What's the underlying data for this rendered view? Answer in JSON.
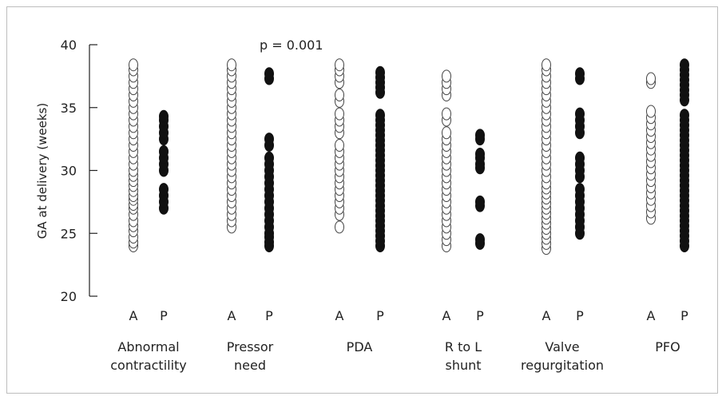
{
  "chart_data": {
    "type": "scatter",
    "ylabel": "GA at delivery (weeks)",
    "ylim": [
      20,
      40
    ],
    "yticks": [
      20,
      25,
      30,
      35,
      40
    ],
    "annotation": "p = 0.001",
    "group_labels": [
      "A",
      "P"
    ],
    "marker_styles": {
      "A": "open",
      "P": "filled"
    },
    "categories": [
      {
        "label_lines": [
          "Abnormal",
          "contractility"
        ],
        "A": [
          24.0,
          24.3,
          24.7,
          25.2,
          25.6,
          26.0,
          26.5,
          27.0,
          27.3,
          27.7,
          28.0,
          28.4,
          28.8,
          29.2,
          29.6,
          30.0,
          30.5,
          31.0,
          31.5,
          32.0,
          32.5,
          33.0,
          33.5,
          34.0,
          34.5,
          35.0,
          35.5,
          36.0,
          36.5,
          37.0,
          37.5,
          38.0,
          38.4
        ],
        "P": [
          27.0,
          27.5,
          28.0,
          28.5,
          30.0,
          30.5,
          31.0,
          31.5,
          32.5,
          33.0,
          33.5,
          34.0,
          34.3
        ]
      },
      {
        "label_lines": [
          "Pressor",
          "need"
        ],
        "A": [
          25.5,
          26.0,
          26.5,
          27.0,
          27.5,
          28.0,
          28.5,
          29.0,
          29.5,
          30.0,
          30.5,
          31.0,
          31.5,
          32.0,
          32.5,
          33.0,
          33.5,
          34.0,
          34.5,
          35.0,
          35.5,
          36.0,
          36.5,
          37.0,
          37.5,
          38.0,
          38.4
        ],
        "P": [
          24.0,
          24.3,
          24.7,
          25.0,
          25.5,
          26.0,
          26.5,
          27.0,
          27.5,
          28.0,
          28.5,
          29.0,
          29.5,
          30.0,
          30.5,
          31.0,
          32.0,
          32.5,
          37.3,
          37.7
        ]
      },
      {
        "label_lines": [
          "PDA"
        ],
        "A": [
          25.5,
          26.5,
          27.0,
          27.5,
          28.0,
          28.5,
          29.0,
          29.5,
          30.0,
          30.5,
          31.0,
          31.5,
          32.0,
          33.0,
          33.5,
          34.0,
          34.5,
          35.5,
          36.0,
          37.0,
          37.5,
          38.0,
          38.4
        ],
        "P": [
          24.0,
          24.4,
          24.8,
          25.2,
          25.6,
          26.0,
          26.4,
          26.8,
          27.2,
          27.6,
          28.0,
          28.4,
          28.8,
          29.2,
          29.6,
          30.0,
          30.4,
          30.8,
          31.2,
          31.6,
          32.0,
          32.4,
          32.8,
          33.2,
          33.6,
          34.0,
          34.4,
          36.2,
          36.6,
          37.0,
          37.4,
          37.8
        ]
      },
      {
        "label_lines": [
          "R to L",
          "shunt"
        ],
        "A": [
          24.0,
          24.5,
          25.0,
          25.5,
          26.0,
          26.5,
          27.0,
          27.5,
          28.0,
          28.5,
          29.0,
          29.5,
          30.0,
          30.5,
          31.0,
          31.5,
          32.0,
          32.5,
          33.0,
          34.0,
          34.5,
          36.0,
          36.5,
          37.0,
          37.5
        ],
        "P": [
          24.2,
          24.5,
          27.2,
          27.5,
          30.2,
          30.5,
          31.0,
          31.3,
          32.5,
          32.8
        ]
      },
      {
        "label_lines": [
          "Valve",
          "regurgitation"
        ],
        "A": [
          23.8,
          24.2,
          24.6,
          25.0,
          25.4,
          25.8,
          26.2,
          26.6,
          27.0,
          27.4,
          27.8,
          28.2,
          28.6,
          29.0,
          29.5,
          30.0,
          30.5,
          31.0,
          31.5,
          32.0,
          32.5,
          33.0,
          33.5,
          34.0,
          34.5,
          35.0,
          35.5,
          36.0,
          36.5,
          37.0,
          37.5,
          38.0,
          38.4
        ],
        "P": [
          25.0,
          25.5,
          26.0,
          26.5,
          27.0,
          27.5,
          28.0,
          28.5,
          29.5,
          30.0,
          30.5,
          31.0,
          33.0,
          33.5,
          34.0,
          34.5,
          37.3,
          37.7
        ]
      },
      {
        "label_lines": [
          "PFO"
        ],
        "A": [
          26.2,
          26.7,
          27.2,
          27.7,
          28.2,
          28.7,
          29.2,
          29.7,
          30.2,
          30.7,
          31.2,
          31.7,
          32.2,
          32.7,
          33.2,
          33.7,
          34.2,
          34.7,
          37.0,
          37.3
        ],
        "P": [
          24.0,
          24.4,
          24.8,
          25.2,
          25.6,
          26.0,
          26.4,
          26.8,
          27.2,
          27.6,
          28.0,
          28.4,
          28.8,
          29.2,
          29.6,
          30.0,
          30.4,
          30.8,
          31.2,
          31.6,
          32.0,
          32.4,
          32.8,
          33.2,
          33.6,
          34.0,
          34.4,
          35.6,
          36.0,
          36.4,
          36.8,
          37.2,
          37.6,
          38.0,
          38.4
        ]
      }
    ]
  }
}
